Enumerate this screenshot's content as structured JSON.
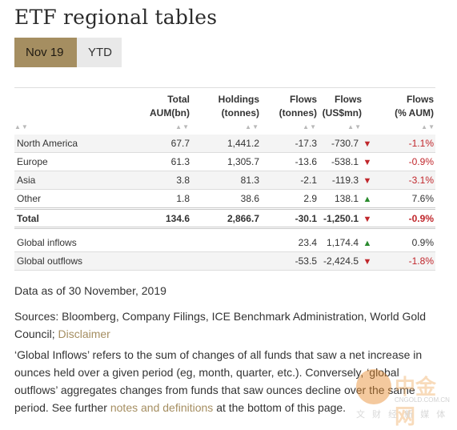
{
  "page": {
    "title": "ETF regional tables"
  },
  "tabs": [
    {
      "label": "Nov 19"
    },
    {
      "label": "YTD"
    }
  ],
  "table": {
    "columns": [
      "",
      "Total AUM(bn)",
      "Holdings (tonnes)",
      "Flows (tonnes)",
      "Flows (US$mn)",
      "Flows (% AUM)"
    ],
    "header": {
      "c1a": "Total",
      "c1b": "AUM(bn)",
      "c2a": "Holdings",
      "c2b": "(tonnes)",
      "c3a": "Flows",
      "c3b": "(tonnes)",
      "c4a": "Flows",
      "c4b": "(US$mn)",
      "c5a": "Flows",
      "c5b": "(% AUM)"
    },
    "sort_glyph": "▲▼",
    "rows": [
      {
        "region": "North America",
        "aum": "67.7",
        "holdings": "1,441.2",
        "flows_t": "-17.3",
        "flows_usd": "-730.7",
        "dir": "▼",
        "flows_pct": "-1.1%"
      },
      {
        "region": "Europe",
        "aum": "61.3",
        "holdings": "1,305.7",
        "flows_t": "-13.6",
        "flows_usd": "-538.1",
        "dir": "▼",
        "flows_pct": "-0.9%"
      },
      {
        "region": "Asia",
        "aum": "3.8",
        "holdings": "81.3",
        "flows_t": "-2.1",
        "flows_usd": "-119.3",
        "dir": "▼",
        "flows_pct": "-3.1%"
      },
      {
        "region": "Other",
        "aum": "1.8",
        "holdings": "38.6",
        "flows_t": "2.9",
        "flows_usd": "138.1",
        "dir": "▲",
        "flows_pct": "7.6%"
      }
    ],
    "total": {
      "region": "Total",
      "aum": "134.6",
      "holdings": "2,866.7",
      "flows_t": "-30.1",
      "flows_usd": "-1,250.1",
      "dir": "▼",
      "flows_pct": "-0.9%"
    },
    "global": [
      {
        "region": "Global inflows",
        "flows_t": "23.4",
        "flows_usd": "1,174.4",
        "dir": "▲",
        "flows_pct": "0.9%"
      },
      {
        "region": "Global outflows",
        "flows_t": "-53.5",
        "flows_usd": "-2,424.5",
        "dir": "▼",
        "flows_pct": "-1.8%"
      }
    ]
  },
  "notes": {
    "data_as_of": "Data as of 30 November, 2019",
    "sources_prefix": "Sources: Bloomberg, Company Filings, ICE Benchmark Administration, World Gold Council;",
    "disclaimer_link": "Disclaimer",
    "def_part1": "‘Global Inflows’ refers to the sum of changes of all funds that saw a net increase in ounces held over a given period (eg, month, quarter, etc.). Conversely, ‘global outflows’ aggregates changes from funds that saw ounces decline over the same period. See further",
    "def_link": "notes and definitions",
    "def_part2": "at the bottom of this page."
  },
  "watermark": {
    "text": "中金网",
    "sub": "CNGOLD.COM.CN",
    "sub2": "文 财 经 新 媒 体"
  },
  "colors": {
    "accent": "#a58e61",
    "negative": "#c0262b",
    "positive": "#2a8a2e"
  }
}
